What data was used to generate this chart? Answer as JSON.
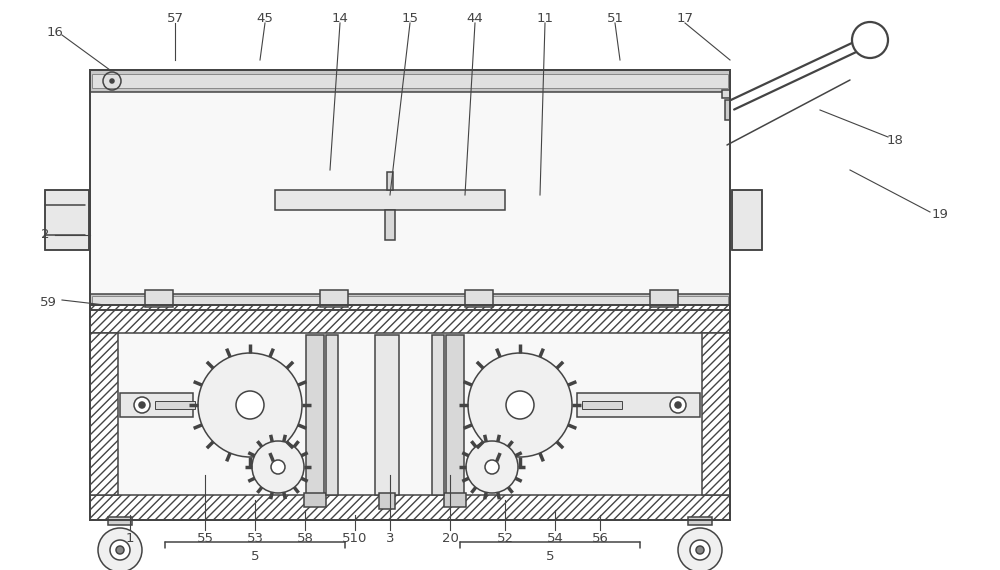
{
  "bg_color": "#ffffff",
  "line_color": "#444444",
  "lw": 1.1,
  "fig_width": 10.0,
  "fig_height": 5.7
}
